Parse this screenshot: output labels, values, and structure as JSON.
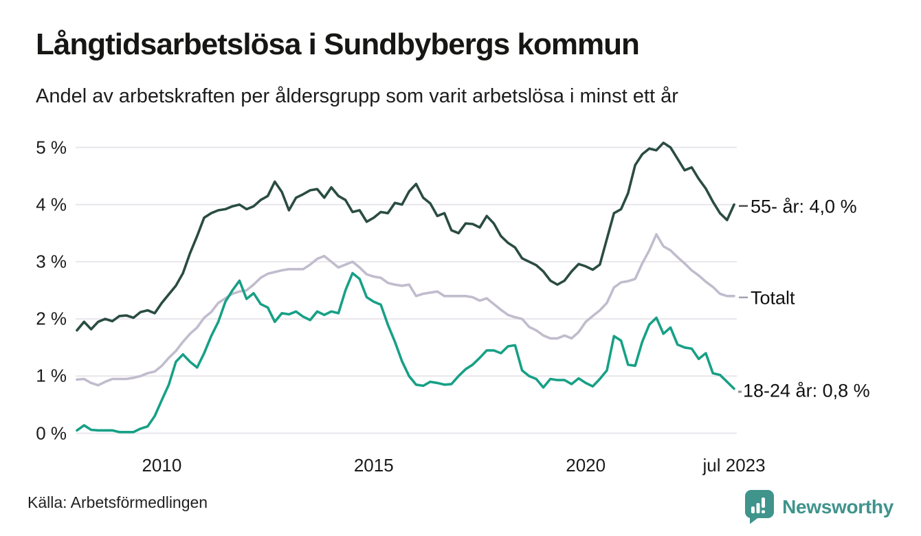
{
  "header": {
    "title": "Långtidsarbetslösa i Sundbybergs kommun",
    "subtitle": "Andel av arbetskraften per åldersgrupp som varit arbetslösa i minst ett år"
  },
  "chart_data": {
    "type": "line",
    "xlabel": "",
    "ylabel": "",
    "ylim": [
      0,
      5
    ],
    "xlim": [
      2008,
      2023.5
    ],
    "x_step": 0.166667,
    "grid": "horizontal",
    "y_ticks": [
      {
        "value": 0,
        "label": "0 %"
      },
      {
        "value": 1,
        "label": "1 %"
      },
      {
        "value": 2,
        "label": "2 %"
      },
      {
        "value": 3,
        "label": "3 %"
      },
      {
        "value": 4,
        "label": "4 %"
      },
      {
        "value": 5,
        "label": "5 %"
      }
    ],
    "x_ticks": [
      {
        "value": 2010,
        "label": "2010"
      },
      {
        "value": 2015,
        "label": "2015"
      },
      {
        "value": 2020,
        "label": "2020"
      },
      {
        "value": 2023.5,
        "label": "jul 2023"
      }
    ],
    "series": [
      {
        "name": "Totalt",
        "end_label": "Totalt",
        "color": "#c1bccd",
        "leader": "dash",
        "leader_color": "#a5a1af",
        "values": [
          0.94,
          0.95,
          0.88,
          0.84,
          0.9,
          0.95,
          0.95,
          0.95,
          0.97,
          1.0,
          1.05,
          1.08,
          1.18,
          1.32,
          1.44,
          1.6,
          1.74,
          1.85,
          2.02,
          2.12,
          2.28,
          2.36,
          2.44,
          2.48,
          2.5,
          2.6,
          2.72,
          2.79,
          2.82,
          2.85,
          2.87,
          2.87,
          2.87,
          2.95,
          3.05,
          3.1,
          3.0,
          2.9,
          2.95,
          3.0,
          2.9,
          2.78,
          2.74,
          2.72,
          2.63,
          2.6,
          2.58,
          2.6,
          2.4,
          2.44,
          2.46,
          2.48,
          2.4,
          2.4,
          2.4,
          2.4,
          2.38,
          2.32,
          2.36,
          2.26,
          2.16,
          2.07,
          2.03,
          2.0,
          1.86,
          1.8,
          1.71,
          1.66,
          1.66,
          1.71,
          1.66,
          1.77,
          1.95,
          2.05,
          2.15,
          2.28,
          2.55,
          2.64,
          2.66,
          2.7,
          2.97,
          3.2,
          3.48,
          3.27,
          3.2,
          3.08,
          2.97,
          2.85,
          2.76,
          2.65,
          2.56,
          2.44,
          2.4,
          2.4
        ]
      },
      {
        "name": "55- år",
        "end_label": "55- år: 4,0 %",
        "color": "#2a4c42",
        "leader": "dash",
        "leader_color": "#4d4d4d",
        "values": [
          1.8,
          1.95,
          1.82,
          1.95,
          2.0,
          1.96,
          2.05,
          2.06,
          2.02,
          2.12,
          2.15,
          2.1,
          2.28,
          2.43,
          2.58,
          2.8,
          3.15,
          3.45,
          3.77,
          3.85,
          3.9,
          3.92,
          3.97,
          4.0,
          3.92,
          3.97,
          4.08,
          4.15,
          4.4,
          4.22,
          3.9,
          4.12,
          4.18,
          4.25,
          4.27,
          4.12,
          4.3,
          4.15,
          4.08,
          3.87,
          3.9,
          3.7,
          3.77,
          3.87,
          3.85,
          4.03,
          4.0,
          4.23,
          4.36,
          4.12,
          4.02,
          3.8,
          3.85,
          3.55,
          3.5,
          3.67,
          3.66,
          3.6,
          3.8,
          3.67,
          3.45,
          3.33,
          3.25,
          3.06,
          3.0,
          2.94,
          2.83,
          2.67,
          2.6,
          2.67,
          2.83,
          2.96,
          2.92,
          2.86,
          2.95,
          3.4,
          3.85,
          3.92,
          4.2,
          4.69,
          4.88,
          4.98,
          4.95,
          5.08,
          5.0,
          4.8,
          4.6,
          4.65,
          4.45,
          4.28,
          4.05,
          3.85,
          3.73,
          4.0
        ]
      },
      {
        "name": "18-24 år",
        "end_label": "18-24 år: 0,8 %",
        "color": "#17a086",
        "leader": "dot",
        "leader_color": "#8f8b99",
        "values": [
          0.05,
          0.14,
          0.06,
          0.05,
          0.05,
          0.05,
          0.02,
          0.02,
          0.02,
          0.08,
          0.12,
          0.3,
          0.58,
          0.85,
          1.25,
          1.38,
          1.25,
          1.15,
          1.4,
          1.7,
          1.95,
          2.3,
          2.5,
          2.67,
          2.35,
          2.45,
          2.26,
          2.2,
          1.95,
          2.1,
          2.08,
          2.13,
          2.04,
          1.98,
          2.13,
          2.07,
          2.13,
          2.1,
          2.5,
          2.8,
          2.7,
          2.38,
          2.3,
          2.25,
          1.9,
          1.6,
          1.26,
          1.0,
          0.85,
          0.83,
          0.9,
          0.88,
          0.85,
          0.86,
          1.0,
          1.12,
          1.2,
          1.32,
          1.45,
          1.45,
          1.4,
          1.52,
          1.54,
          1.1,
          1.0,
          0.95,
          0.8,
          0.95,
          0.93,
          0.93,
          0.86,
          0.96,
          0.88,
          0.82,
          0.95,
          1.1,
          1.7,
          1.62,
          1.2,
          1.18,
          1.6,
          1.9,
          2.02,
          1.74,
          1.85,
          1.55,
          1.5,
          1.48,
          1.3,
          1.4,
          1.05,
          1.02,
          0.9,
          0.78
        ]
      }
    ],
    "grid_color": "#e8e6eb"
  },
  "footer": {
    "source": "Källa: Arbetsförmedlingen",
    "brand": "Newsworthy",
    "brand_color": "#3f948c"
  }
}
